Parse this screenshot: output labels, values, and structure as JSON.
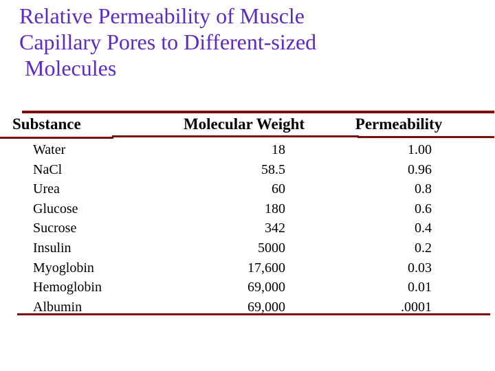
{
  "slide": {
    "title": {
      "lines": [
        "Relative Permeability of Muscle",
        "Capillary Pores to Different-sized",
        " Molecules"
      ]
    },
    "colors": {
      "title_text": "#5e2ac4",
      "rule": "#7a1010",
      "body_text": "#000000",
      "background": "#ffffff"
    }
  },
  "table": {
    "headers": {
      "substance": "Substance",
      "molecular_weight": "Molecular Weight",
      "permeability": "Permeability"
    },
    "rows": [
      {
        "substance": "Water",
        "molecular_weight": "18",
        "permeability": "1.00"
      },
      {
        "substance": "NaCl",
        "molecular_weight": "58.5",
        "permeability": "0.96"
      },
      {
        "substance": "Urea",
        "molecular_weight": "60",
        "permeability": "0.8"
      },
      {
        "substance": "Glucose",
        "molecular_weight": "180",
        "permeability": "0.6"
      },
      {
        "substance": "Sucrose",
        "molecular_weight": "342",
        "permeability": "0.4"
      },
      {
        "substance": "Insulin",
        "molecular_weight": "5000",
        "permeability": "0.2"
      },
      {
        "substance": "Myoglobin",
        "molecular_weight": "17,600",
        "permeability": "0.03"
      },
      {
        "substance": "Hemoglobin",
        "molecular_weight": "69,000",
        "permeability": "0.01"
      },
      {
        "substance": "Albumin",
        "molecular_weight": "69,000",
        "permeability": ".0001"
      }
    ]
  }
}
